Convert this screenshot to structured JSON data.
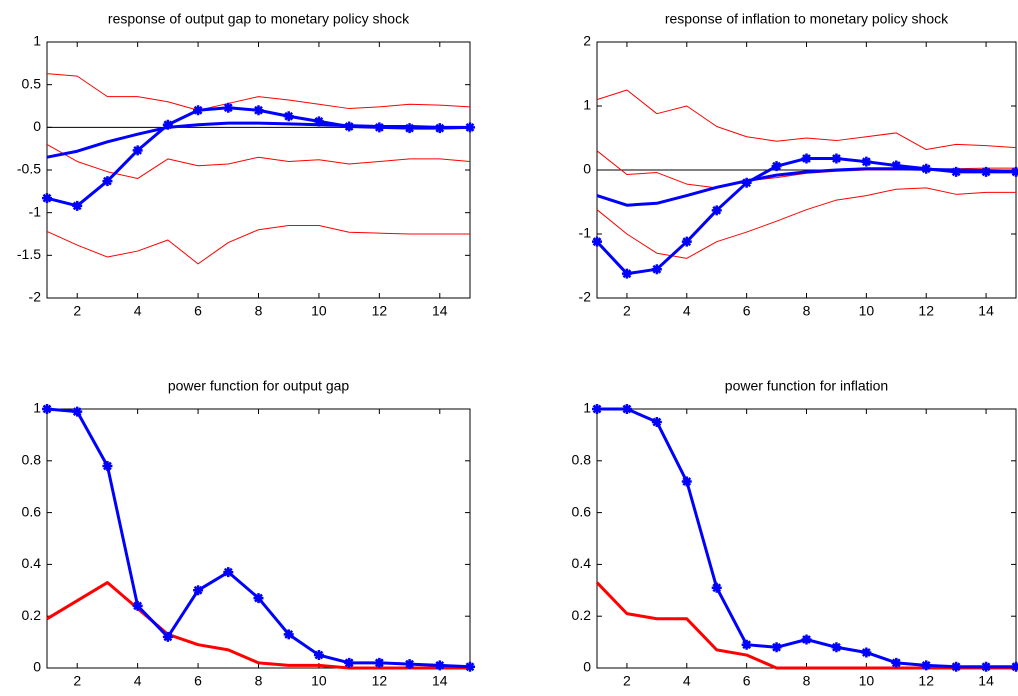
{
  "chart_data": [
    {
      "type": "line",
      "title": "response of output gap to monetary policy shock",
      "x": [
        1,
        2,
        3,
        4,
        5,
        6,
        7,
        8,
        9,
        10,
        11,
        12,
        13,
        14,
        15
      ],
      "xlim": [
        1,
        15
      ],
      "xticks": [
        2,
        4,
        6,
        8,
        10,
        12,
        14
      ],
      "ylim": [
        -2,
        1
      ],
      "yticks": [
        -2,
        -1.5,
        -1,
        -0.5,
        0,
        0.5,
        1
      ],
      "zero_line": true,
      "series": [
        {
          "color": "#ff0000",
          "weight": "thin",
          "marker": false,
          "values": [
            0.63,
            0.6,
            0.36,
            0.36,
            0.3,
            0.2,
            0.28,
            0.36,
            0.32,
            0.27,
            0.22,
            0.24,
            0.27,
            0.26,
            0.24
          ]
        },
        {
          "color": "#ff0000",
          "weight": "thin",
          "marker": false,
          "values": [
            -0.2,
            -0.4,
            -0.52,
            -0.6,
            -0.37,
            -0.45,
            -0.43,
            -0.35,
            -0.4,
            -0.38,
            -0.43,
            -0.4,
            -0.37,
            -0.37,
            -0.4
          ]
        },
        {
          "color": "#ff0000",
          "weight": "thin",
          "marker": false,
          "values": [
            -1.22,
            -1.38,
            -1.52,
            -1.45,
            -1.32,
            -1.6,
            -1.35,
            -1.2,
            -1.15,
            -1.15,
            -1.23,
            -1.24,
            -1.25,
            -1.25,
            -1.25
          ]
        },
        {
          "color": "#0000ff",
          "weight": "thick",
          "marker": false,
          "values": [
            -0.35,
            -0.28,
            -0.17,
            -0.08,
            0,
            0.03,
            0.05,
            0.05,
            0.04,
            0.03,
            0.02,
            0.01,
            0.01,
            0,
            0
          ]
        },
        {
          "color": "#0000ff",
          "weight": "thick",
          "marker": true,
          "values": [
            -0.83,
            -0.92,
            -0.63,
            -0.27,
            0.03,
            0.2,
            0.23,
            0.2,
            0.13,
            0.07,
            0.01,
            0,
            -0.01,
            -0.01,
            0
          ]
        }
      ]
    },
    {
      "type": "line",
      "title": "response of inflation to monetary policy shock",
      "x": [
        1,
        2,
        3,
        4,
        5,
        6,
        7,
        8,
        9,
        10,
        11,
        12,
        13,
        14,
        15
      ],
      "xlim": [
        1,
        15
      ],
      "xticks": [
        2,
        4,
        6,
        8,
        10,
        12,
        14
      ],
      "ylim": [
        -2,
        2
      ],
      "yticks": [
        -2,
        -1,
        0,
        1,
        2
      ],
      "zero_line": true,
      "series": [
        {
          "color": "#ff0000",
          "weight": "thin",
          "marker": false,
          "values": [
            1.1,
            1.25,
            0.88,
            1.0,
            0.68,
            0.52,
            0.45,
            0.5,
            0.46,
            0.52,
            0.58,
            0.32,
            0.4,
            0.38,
            0.35
          ]
        },
        {
          "color": "#ff0000",
          "weight": "thin",
          "marker": false,
          "values": [
            0.3,
            -0.07,
            -0.04,
            -0.22,
            -0.28,
            -0.17,
            -0.12,
            -0.05,
            -0.02,
            0,
            0,
            0.01,
            0.02,
            0.03,
            0.03
          ]
        },
        {
          "color": "#ff0000",
          "weight": "thin",
          "marker": false,
          "values": [
            -0.62,
            -1.0,
            -1.3,
            -1.38,
            -1.12,
            -0.97,
            -0.8,
            -0.62,
            -0.47,
            -0.4,
            -0.3,
            -0.28,
            -0.38,
            -0.35,
            -0.35
          ]
        },
        {
          "color": "#0000ff",
          "weight": "thick",
          "marker": false,
          "values": [
            -0.4,
            -0.55,
            -0.52,
            -0.4,
            -0.27,
            -0.17,
            -0.08,
            -0.03,
            0,
            0.02,
            0.02,
            0.01,
            0,
            -0.01,
            -0.02
          ]
        },
        {
          "color": "#0000ff",
          "weight": "thick",
          "marker": true,
          "values": [
            -1.12,
            -1.62,
            -1.55,
            -1.12,
            -0.63,
            -0.2,
            0.06,
            0.18,
            0.18,
            0.13,
            0.07,
            0.02,
            -0.03,
            -0.03,
            -0.03
          ]
        }
      ]
    },
    {
      "type": "line",
      "title": "power function for output gap",
      "x": [
        1,
        2,
        3,
        4,
        5,
        6,
        7,
        8,
        9,
        10,
        11,
        12,
        13,
        14,
        15
      ],
      "xlim": [
        1,
        15
      ],
      "xticks": [
        2,
        4,
        6,
        8,
        10,
        12,
        14
      ],
      "ylim": [
        0,
        1
      ],
      "yticks": [
        0,
        0.2,
        0.4,
        0.6,
        0.8,
        1
      ],
      "zero_line": false,
      "series": [
        {
          "color": "#ff0000",
          "weight": "thick",
          "marker": false,
          "values": [
            0.19,
            0.26,
            0.33,
            0.23,
            0.13,
            0.09,
            0.07,
            0.02,
            0.01,
            0.01,
            0,
            0,
            0,
            0,
            0
          ]
        },
        {
          "color": "#0000ff",
          "weight": "thick",
          "marker": true,
          "values": [
            1,
            0.99,
            0.78,
            0.24,
            0.12,
            0.3,
            0.37,
            0.27,
            0.13,
            0.05,
            0.02,
            0.02,
            0.015,
            0.01,
            0.005
          ]
        }
      ]
    },
    {
      "type": "line",
      "title": "power function for inflation",
      "x": [
        1,
        2,
        3,
        4,
        5,
        6,
        7,
        8,
        9,
        10,
        11,
        12,
        13,
        14,
        15
      ],
      "xlim": [
        1,
        15
      ],
      "xticks": [
        2,
        4,
        6,
        8,
        10,
        12,
        14
      ],
      "ylim": [
        0,
        1
      ],
      "yticks": [
        0,
        0.2,
        0.4,
        0.6,
        0.8,
        1
      ],
      "zero_line": false,
      "series": [
        {
          "color": "#ff0000",
          "weight": "thick",
          "marker": false,
          "values": [
            0.33,
            0.21,
            0.19,
            0.19,
            0.07,
            0.05,
            0,
            0,
            0,
            0,
            0,
            0,
            0,
            0,
            0
          ]
        },
        {
          "color": "#0000ff",
          "weight": "thick",
          "marker": true,
          "values": [
            1,
            1,
            0.95,
            0.72,
            0.31,
            0.09,
            0.08,
            0.11,
            0.08,
            0.06,
            0.02,
            0.01,
            0.005,
            0.005,
            0.005
          ]
        }
      ]
    }
  ]
}
